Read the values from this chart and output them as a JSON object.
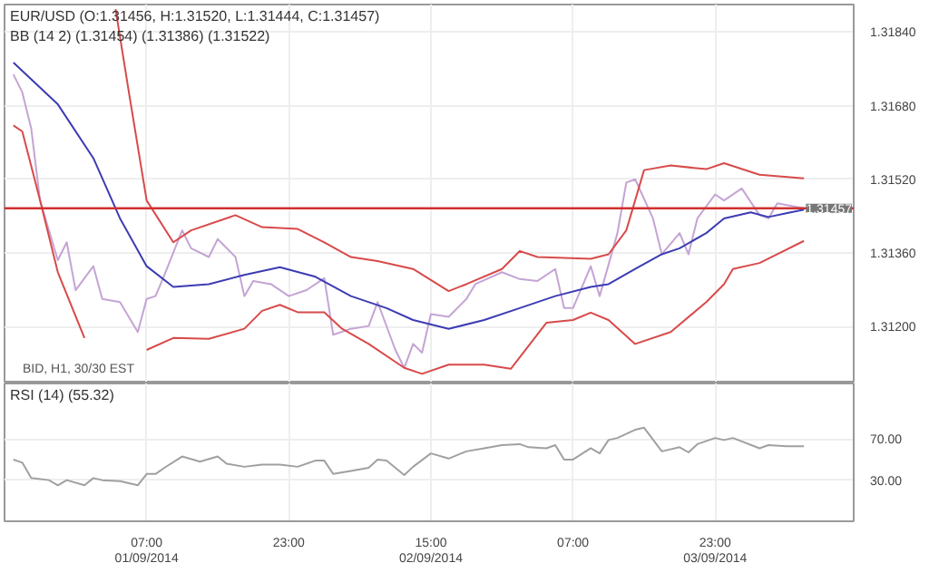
{
  "chart_data": [
    {
      "type": "line",
      "title": "EUR/USD (O:1.31456, H:1.31520, L:1.31444, C:1.31457)",
      "subtitle": "BB (14 2) (1.31454) (1.31386) (1.31522)",
      "annotations": [
        "BID, H1, 30/30 EST"
      ],
      "series": [
        {
          "color": "#c4a4d4",
          "x": [
            "2014-08-31T16:00",
            "2014-08-31T17:00",
            "2014-08-31T18:00",
            "2014-08-31T19:00",
            "2014-08-31T21:00",
            "2014-08-31T22:00",
            "2014-08-31T23:00",
            "2014-09-01T01:00",
            "2014-09-01T02:00",
            "2014-09-01T04:00",
            "2014-09-01T06:00",
            "2014-09-01T07:00",
            "2014-09-01T08:00",
            "2014-09-01T09:00",
            "2014-09-01T11:00",
            "2014-09-01T12:00",
            "2014-09-01T14:00",
            "2014-09-01T15:00",
            "2014-09-01T17:00",
            "2014-09-01T18:00",
            "2014-09-01T19:00",
            "2014-09-01T21:00",
            "2014-09-01T23:00",
            "2014-09-02T01:00",
            "2014-09-02T03:00",
            "2014-09-02T04:00",
            "2014-09-02T06:00",
            "2014-09-02T08:00",
            "2014-09-02T09:00",
            "2014-09-02T11:00",
            "2014-09-02T12:00",
            "2014-09-02T13:00",
            "2014-09-02T14:00",
            "2014-09-02T15:00",
            "2014-09-02T17:00",
            "2014-09-02T19:00",
            "2014-09-02T20:00",
            "2014-09-02T23:00",
            "2014-09-03T01:00",
            "2014-09-03T03:00",
            "2014-09-03T05:00",
            "2014-09-03T06:00",
            "2014-09-03T07:00",
            "2014-09-03T09:00",
            "2014-09-03T10:00",
            "2014-09-03T12:00",
            "2014-09-03T13:00",
            "2014-09-03T14:00",
            "2014-09-03T16:00",
            "2014-09-03T17:00",
            "2014-09-03T19:00",
            "2014-09-03T20:00",
            "2014-09-03T21:00",
            "2014-09-03T23:00",
            "2014-09-04T00:00",
            "2014-09-04T02:00",
            "2014-09-04T04:00",
            "2014-09-04T05:00",
            "2014-09-04T06:00",
            "2014-09-04T09:00"
          ],
          "values": [
            1.31748,
            1.31709,
            1.31631,
            1.31474,
            1.31344,
            1.31383,
            1.31279,
            1.31331,
            1.3126,
            1.31253,
            1.31188,
            1.3126,
            1.31266,
            1.31312,
            1.31409,
            1.3137,
            1.31351,
            1.3139,
            1.31351,
            1.31266,
            1.31299,
            1.31292,
            1.31266,
            1.31279,
            1.31305,
            1.31182,
            1.31195,
            1.31201,
            1.31253,
            1.31149,
            1.3111,
            1.31162,
            1.31143,
            1.31227,
            1.31221,
            1.3126,
            1.31292,
            1.31318,
            1.31303,
            1.31299,
            1.31325,
            1.3124,
            1.3124,
            1.31331,
            1.31266,
            1.31403,
            1.31513,
            1.3152,
            1.31435,
            1.31357,
            1.31403,
            1.31357,
            1.31435,
            1.31487,
            1.31474,
            1.315,
            1.31442,
            1.31435,
            1.31468,
            1.31457
          ]
        },
        {
          "color": "#3c3cb4",
          "x": [
            "2014-08-31T16:00",
            "2014-08-31T21:00",
            "2014-09-01T01:00",
            "2014-09-01T04:00",
            "2014-09-01T07:00",
            "2014-09-01T10:00",
            "2014-09-01T14:00",
            "2014-09-01T18:00",
            "2014-09-01T22:00",
            "2014-09-02T02:00",
            "2014-09-02T06:00",
            "2014-09-02T10:00",
            "2014-09-02T13:00",
            "2014-09-02T17:00",
            "2014-09-02T21:00",
            "2014-09-03T01:00",
            "2014-09-03T05:00",
            "2014-09-03T09:00",
            "2014-09-03T11:00",
            "2014-09-03T14:00",
            "2014-09-03T17:00",
            "2014-09-03T19:00",
            "2014-09-03T22:00",
            "2014-09-04T00:00",
            "2014-09-04T03:00",
            "2014-09-04T05:00",
            "2014-09-04T07:00",
            "2014-09-04T09:00"
          ],
          "values": [
            1.31774,
            1.31683,
            1.31566,
            1.31435,
            1.31331,
            1.31286,
            1.31292,
            1.31312,
            1.31329,
            1.31308,
            1.31266,
            1.3124,
            1.31214,
            1.31195,
            1.31214,
            1.3124,
            1.31266,
            1.31286,
            1.31292,
            1.31325,
            1.31357,
            1.3137,
            1.31403,
            1.31435,
            1.31448,
            1.31438,
            1.31446,
            1.31454
          ]
        },
        {
          "color": "#d84a4a",
          "x": [
            "2014-09-01T03:30",
            "2014-09-01T05:00",
            "2014-09-01T07:00",
            "2014-09-01T10:00",
            "2014-09-01T12:00",
            "2014-09-01T17:00",
            "2014-09-01T20:00",
            "2014-09-02T00:00",
            "2014-09-02T03:00",
            "2014-09-02T06:00",
            "2014-09-02T09:00",
            "2014-09-02T13:00",
            "2014-09-02T17:00",
            "2014-09-02T19:00",
            "2014-09-02T23:00",
            "2014-09-03T01:00",
            "2014-09-03T03:00",
            "2014-09-03T09:00",
            "2014-09-03T11:00",
            "2014-09-03T13:00",
            "2014-09-03T15:00",
            "2014-09-03T18:00",
            "2014-09-03T22:00",
            "2014-09-04T00:00",
            "2014-09-04T04:00",
            "2014-09-04T09:00"
          ],
          "values": [
            1.3189,
            1.31709,
            1.31474,
            1.31383,
            1.31409,
            1.31442,
            1.31416,
            1.31412,
            1.31383,
            1.31351,
            1.31342,
            1.31325,
            1.31277,
            1.31292,
            1.31325,
            1.31364,
            1.31351,
            1.31347,
            1.31357,
            1.31409,
            1.3154,
            1.3155,
            1.31542,
            1.31555,
            1.3153,
            1.31522
          ]
        },
        {
          "color": "#d84a4a",
          "x": [
            "2014-08-31T16:00",
            "2014-08-31T17:00",
            "2014-08-31T19:00",
            "2014-08-31T21:00",
            "2014-09-01T00:00",
            "2014-09-01T01:30",
            "2014-09-01T05:30",
            "2014-09-01T07:00",
            "2014-09-01T10:00",
            "2014-09-01T14:00",
            "2014-09-01T18:00",
            "2014-09-01T20:00",
            "2014-09-01T22:00",
            "2014-09-02T00:00",
            "2014-09-02T03:00",
            "2014-09-02T05:00",
            "2014-09-02T08:00",
            "2014-09-02T12:00",
            "2014-09-02T14:00",
            "2014-09-02T17:00",
            "2014-09-02T21:00",
            "2014-09-03T00:00",
            "2014-09-03T04:00",
            "2014-09-03T07:00",
            "2014-09-03T09:00",
            "2014-09-03T11:00",
            "2014-09-03T14:00",
            "2014-09-03T18:00",
            "2014-09-03T22:00",
            "2014-09-04T00:00",
            "2014-09-04T01:00",
            "2014-09-04T04:00",
            "2014-09-04T06:00",
            "2014-09-04T09:00"
          ],
          "values": [
            1.31637,
            1.31624,
            1.31474,
            1.31318,
            1.31175,
            null,
            null,
            1.31149,
            1.31175,
            1.31173,
            1.31195,
            1.31234,
            1.31247,
            1.31231,
            1.31231,
            1.31195,
            1.31162,
            1.3111,
            1.31097,
            1.31117,
            1.31117,
            1.31108,
            1.31208,
            1.31214,
            1.3123,
            1.31214,
            1.31162,
            1.31188,
            1.31253,
            1.31292,
            1.31325,
            1.31338,
            1.31357,
            1.31386
          ]
        }
      ],
      "xlim": [
        "2014-08-31T15:00",
        "2014-09-04T14:36"
      ],
      "xticks": [
        {
          "value": "2014-09-01T07:00",
          "label": null
        },
        {
          "value": "2014-09-01T23:00",
          "label": null
        },
        {
          "value": "2014-09-02T15:00",
          "label": null
        },
        {
          "value": "2014-09-03T07:00",
          "label": null
        },
        {
          "value": "2014-09-03T23:00",
          "label": null
        }
      ],
      "ylim": [
        1.3108,
        1.319
      ],
      "yticks": [
        {
          "value": 1.3184,
          "label": "1.31840"
        },
        {
          "value": 1.3168,
          "label": "1.31680"
        },
        {
          "value": 1.3152,
          "label": "1.31520"
        },
        {
          "value": 1.3136,
          "label": "1.31360"
        },
        {
          "value": 1.312,
          "label": "1.31200"
        }
      ],
      "grid": true,
      "tick_labels": "y",
      "ref_lines": [
        {
          "axis": "y",
          "value": 1.31457,
          "label": "1.31457",
          "color": "#d03030"
        }
      ]
    },
    {
      "type": "line",
      "title": "RSI (14)  (55.32)",
      "series": [
        {
          "color": "#a0a0a0",
          "x": [
            "2014-08-31T16:00",
            "2014-08-31T17:00",
            "2014-08-31T18:00",
            "2014-08-31T20:00",
            "2014-08-31T21:00",
            "2014-08-31T22:00",
            "2014-09-01T00:00",
            "2014-09-01T01:00",
            "2014-09-01T02:00",
            "2014-09-01T04:00",
            "2014-09-01T06:00",
            "2014-09-01T07:00",
            "2014-09-01T08:00",
            "2014-09-01T09:00",
            "2014-09-01T11:00",
            "2014-09-01T13:00",
            "2014-09-01T15:00",
            "2014-09-01T16:00",
            "2014-09-01T18:00",
            "2014-09-01T20:00",
            "2014-09-01T22:00",
            "2014-09-02T00:00",
            "2014-09-02T02:00",
            "2014-09-02T03:00",
            "2014-09-02T04:00",
            "2014-09-02T06:00",
            "2014-09-02T08:00",
            "2014-09-02T09:00",
            "2014-09-02T10:00",
            "2014-09-02T12:00",
            "2014-09-02T13:00",
            "2014-09-02T15:00",
            "2014-09-02T17:00",
            "2014-09-02T19:00",
            "2014-09-02T21:00",
            "2014-09-02T23:00",
            "2014-09-03T01:00",
            "2014-09-03T02:00",
            "2014-09-03T04:00",
            "2014-09-03T05:00",
            "2014-09-03T06:00",
            "2014-09-03T07:00",
            "2014-09-03T09:00",
            "2014-09-03T10:00",
            "2014-09-03T11:00",
            "2014-09-03T12:00",
            "2014-09-03T14:00",
            "2014-09-03T15:00",
            "2014-09-03T17:00",
            "2014-09-03T19:00",
            "2014-09-03T20:00",
            "2014-09-03T21:00",
            "2014-09-03T23:00",
            "2014-09-04T00:00",
            "2014-09-04T01:00",
            "2014-09-04T04:00",
            "2014-09-04T05:00",
            "2014-09-04T07:00",
            "2014-09-04T09:00"
          ],
          "values": [
            50,
            47,
            32,
            30,
            25,
            30,
            25,
            32,
            30,
            29,
            25,
            36,
            36,
            42,
            53,
            48,
            53,
            46,
            43,
            45,
            45,
            43,
            49,
            49,
            36,
            39,
            42,
            50,
            49,
            35,
            43,
            56,
            51,
            58,
            61,
            64,
            65,
            62,
            61,
            64,
            50,
            50,
            61,
            56,
            69,
            71,
            79,
            81,
            58,
            62,
            57,
            65,
            71,
            69,
            71,
            61,
            64,
            63,
            63
          ]
        }
      ],
      "xlim": [
        "2014-08-31T15:00",
        "2014-09-04T14:36"
      ],
      "xticks": [
        {
          "value": "2014-09-01T07:00",
          "label": "07:00\n01/09/2014"
        },
        {
          "value": "2014-09-01T23:00",
          "label": "23:00"
        },
        {
          "value": "2014-09-02T15:00",
          "label": "15:00\n02/09/2014"
        },
        {
          "value": "2014-09-03T07:00",
          "label": "07:00"
        },
        {
          "value": "2014-09-03T23:00",
          "label": "23:00\n03/09/2014"
        }
      ],
      "ylim": [
        -10,
        124
      ],
      "yticks": [
        {
          "value": 70,
          "label": "70.00"
        },
        {
          "value": 30,
          "label": "30.00"
        }
      ],
      "grid": true
    }
  ]
}
